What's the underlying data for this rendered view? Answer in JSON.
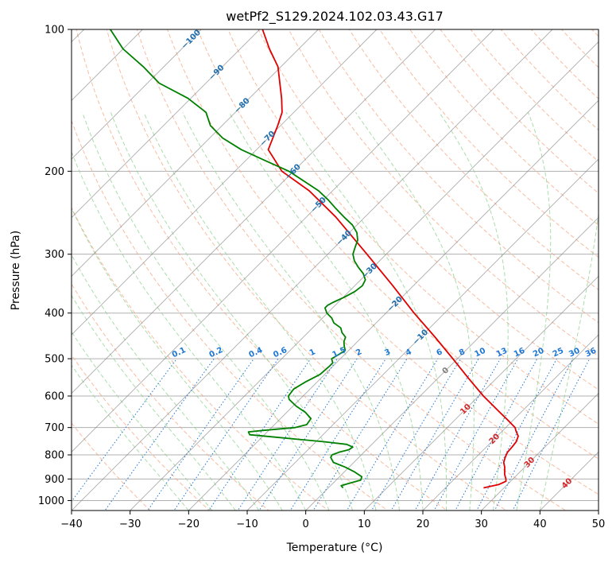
{
  "chart_data": {
    "type": "line",
    "subtype": "skew-t log-p",
    "title": "wetPf2_S129.2024.102.03.43.G17",
    "xlabel": "Temperature (°C)",
    "ylabel": "Pressure (hPa)",
    "xlim": [
      -40,
      50
    ],
    "ylim": [
      1050,
      100
    ],
    "y_scale": "log",
    "grid": true,
    "x_ticks": [
      -40,
      -30,
      -20,
      -10,
      0,
      10,
      20,
      30,
      40,
      50
    ],
    "x_tick_labels": [
      "−40",
      "−30",
      "−20",
      "−10",
      "0",
      "10",
      "20",
      "30",
      "40",
      "50"
    ],
    "y_ticks": [
      100,
      200,
      300,
      400,
      500,
      600,
      700,
      800,
      900,
      1000
    ],
    "y_tick_labels": [
      "100",
      "200",
      "300",
      "400",
      "500",
      "600",
      "700",
      "800",
      "900",
      "1000"
    ],
    "series": [
      {
        "color": "#e00000",
        "p": [
          940,
          925,
          910,
          900,
          880,
          850,
          830,
          810,
          790,
          770,
          750,
          730,
          710,
          700,
          680,
          650,
          600,
          550,
          500,
          450,
          400,
          350,
          300,
          250,
          220,
          200,
          180,
          160,
          150,
          140,
          120,
          110,
          100
        ],
        "t": [
          26.5,
          28.5,
          29.2,
          28.8,
          27.8,
          26.6,
          25.6,
          25.0,
          24.5,
          24.4,
          24.2,
          23.6,
          22.2,
          21.6,
          19.6,
          16.4,
          10.8,
          5.2,
          -0.8,
          -7.5,
          -15.2,
          -23.5,
          -33.3,
          -45.0,
          -54.0,
          -62.0,
          -68.0,
          -70.5,
          -72.0,
          -74.5,
          -80.5,
          -85.0,
          -89.5
        ]
      },
      {
        "color": "#008000",
        "p": [
          940,
          930,
          920,
          905,
          890,
          870,
          850,
          830,
          810,
          800,
          790,
          780,
          770,
          760,
          750,
          735,
          725,
          715,
          710,
          700,
          690,
          670,
          650,
          630,
          610,
          600,
          580,
          560,
          540,
          520,
          510,
          500,
          490,
          480,
          470,
          460,
          450,
          440,
          430,
          420,
          410,
          400,
          390,
          385,
          380,
          370,
          360,
          350,
          340,
          330,
          320,
          310,
          300,
          290,
          280,
          270,
          260,
          250,
          240,
          230,
          220,
          210,
          200,
          190,
          180,
          170,
          160,
          150,
          140,
          130,
          120,
          110,
          100
        ],
        "t": [
          2.5,
          1.8,
          2.7,
          4.2,
          3.8,
          1.8,
          -0.6,
          -3.5,
          -4.8,
          -5.0,
          -4.3,
          -3.0,
          -2.8,
          -4.3,
          -8.8,
          -17.0,
          -22.5,
          -23.2,
          -21.0,
          -16.0,
          -14.5,
          -14.8,
          -16.8,
          -19.5,
          -21.8,
          -22.5,
          -22.8,
          -22.0,
          -20.8,
          -20.6,
          -20.6,
          -21.5,
          -21.0,
          -20.6,
          -21.5,
          -22.3,
          -22.8,
          -24.2,
          -25.2,
          -27.2,
          -28.4,
          -30.1,
          -31.3,
          -31.3,
          -30.9,
          -29.8,
          -29.0,
          -28.7,
          -29.2,
          -30.6,
          -32.5,
          -34.3,
          -35.7,
          -36.5,
          -37.3,
          -38.7,
          -40.8,
          -43.6,
          -46.4,
          -49.2,
          -52.4,
          -56.5,
          -60.8,
          -66.6,
          -72.6,
          -77.8,
          -82.0,
          -85.0,
          -90.5,
          -98.0,
          -103.5,
          -110.0,
          -115.5
        ]
      }
    ],
    "isotherm_labels": [
      "−100",
      "−90",
      "−80",
      "−70",
      "−60",
      "−50",
      "−40",
      "−30",
      "−20",
      "−10",
      "0",
      "10",
      "20",
      "30",
      "40"
    ],
    "isotherm_label_values": [
      -100,
      -90,
      -80,
      -70,
      -60,
      -50,
      -40,
      -30,
      -20,
      -10,
      0,
      10,
      20,
      30,
      40
    ],
    "mixing_ratio_labels": [
      "0.1",
      "0.2",
      "0.4",
      "0.6",
      "1",
      "1.5",
      "2",
      "3",
      "4",
      "6",
      "8",
      "10",
      "13",
      "16",
      "20",
      "25",
      "30",
      "36"
    ],
    "mixing_ratio_values": [
      0.1,
      0.2,
      0.4,
      0.6,
      1,
      1.5,
      2,
      3,
      4,
      6,
      8,
      10,
      13,
      16,
      20,
      25,
      30,
      36
    ],
    "colors": {
      "temperature": "#e00000",
      "dewpoint": "#008000",
      "isotherm": "#808080",
      "dry_adiabat": "#f4a582",
      "moist_adiabat": "#8fd18f",
      "mixing_ratio": "#1f77d4",
      "pressure_grid": "#b0b0b0",
      "isotherm_label_cold": "#1f6fb0",
      "isotherm_label_zero": "#808080",
      "isotherm_label_warm": "#d62728"
    }
  }
}
